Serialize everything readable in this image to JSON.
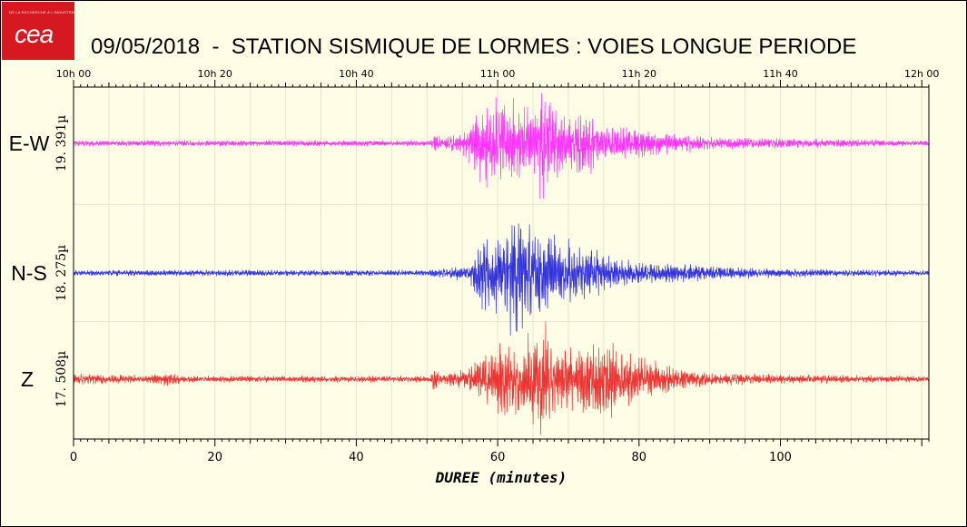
{
  "chart_data": {
    "type": "line",
    "title": "09/05/2018  -  STATION SISMIQUE DE LORMES : VOIES LONGUE PERIODE",
    "xlabel": "DUREE (minutes)",
    "xlim": [
      0,
      121
    ],
    "x_ticks": [
      0,
      20,
      40,
      60,
      80,
      100
    ],
    "time_ticks": [
      "10h 00",
      "10h 20",
      "10h 40",
      "11h 00",
      "11h 20",
      "11h 40",
      "12h 00"
    ],
    "grid": true,
    "series": [
      {
        "name": "E-W",
        "scale_label": "19. 391µ",
        "color": "#ff33ff",
        "noise": 0.045,
        "envelope": [
          [
            0,
            0.05
          ],
          [
            50.5,
            0.05
          ],
          [
            51,
            0.22
          ],
          [
            52,
            0.08
          ],
          [
            55,
            0.18
          ],
          [
            57.5,
            0.62
          ],
          [
            59,
            0.85
          ],
          [
            61,
            0.62
          ],
          [
            63,
            0.75
          ],
          [
            65,
            0.55
          ],
          [
            66.5,
            1.0
          ],
          [
            68,
            0.6
          ],
          [
            70,
            0.48
          ],
          [
            73,
            0.55
          ],
          [
            75,
            0.28
          ],
          [
            80,
            0.24
          ],
          [
            85,
            0.17
          ],
          [
            90,
            0.11
          ],
          [
            100,
            0.08
          ],
          [
            110,
            0.06
          ],
          [
            121,
            0.05
          ]
        ]
      },
      {
        "name": "N-S",
        "scale_label": "18. 275µ",
        "color": "#3333dd",
        "noise": 0.04,
        "envelope": [
          [
            0,
            0.04
          ],
          [
            50.5,
            0.04
          ],
          [
            52,
            0.08
          ],
          [
            56,
            0.09
          ],
          [
            57.5,
            0.48
          ],
          [
            59,
            0.55
          ],
          [
            61,
            0.45
          ],
          [
            62,
            1.0
          ],
          [
            64,
            0.72
          ],
          [
            66,
            0.62
          ],
          [
            68,
            0.5
          ],
          [
            70,
            0.42
          ],
          [
            73,
            0.35
          ],
          [
            76,
            0.22
          ],
          [
            80,
            0.14
          ],
          [
            85,
            0.13
          ],
          [
            90,
            0.11
          ],
          [
            95,
            0.07
          ],
          [
            105,
            0.05
          ],
          [
            121,
            0.04
          ]
        ]
      },
      {
        "name": "Z",
        "scale_label": "17. 508µ",
        "color": "#ee3333",
        "noise": 0.045,
        "envelope": [
          [
            0,
            0.09
          ],
          [
            10,
            0.06
          ],
          [
            13,
            0.1
          ],
          [
            16,
            0.05
          ],
          [
            30,
            0.05
          ],
          [
            50.5,
            0.05
          ],
          [
            51,
            0.2
          ],
          [
            52,
            0.08
          ],
          [
            55,
            0.15
          ],
          [
            58,
            0.38
          ],
          [
            61,
            0.6
          ],
          [
            63,
            0.5
          ],
          [
            65,
            0.75
          ],
          [
            66.5,
            1.0
          ],
          [
            68,
            0.55
          ],
          [
            71,
            0.42
          ],
          [
            74,
            0.7
          ],
          [
            76,
            0.58
          ],
          [
            80,
            0.35
          ],
          [
            85,
            0.17
          ],
          [
            90,
            0.11
          ],
          [
            100,
            0.07
          ],
          [
            121,
            0.05
          ]
        ]
      }
    ]
  }
}
